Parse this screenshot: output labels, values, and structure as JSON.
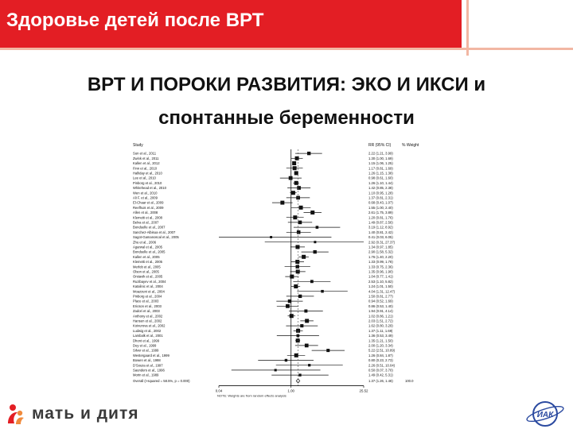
{
  "header": {
    "title": "Здоровье детей после ВРТ",
    "color": "#e31e24"
  },
  "slide": {
    "title_line1": "ВРТ И ПОРОКИ РАЗВИТИЯ: ЭКО И ИКСИ  и",
    "title_line2": "спонтанные беременности"
  },
  "chart_data": {
    "type": "forest",
    "columns": [
      "Study",
      "RR (95% CI)",
      "% Weight"
    ],
    "x_scale": "log",
    "x_ticks": [
      "0.04",
      "1.00",
      "25.52"
    ],
    "studies": [
      {
        "label": "Sun et al., 2011",
        "rr": 2.22,
        "ci": [
          1.21,
          3.99
        ]
      },
      {
        "label": "Zwink et al., 2011",
        "rr": 1.3,
        "ci": [
          1.0,
          1.69
        ]
      },
      {
        "label": "Kallen et al., 2012",
        "rr": 1.15,
        "ci": [
          1.06,
          1.25
        ]
      },
      {
        "label": "Finn et al., 2010",
        "rr": 1.17,
        "ci": [
          0.81,
          1.69
        ]
      },
      {
        "label": "Halliday et al., 2010",
        "rr": 1.26,
        "ci": [
          1.15,
          1.38
        ]
      },
      {
        "label": "Lee et al., 2010",
        "rr": 0.98,
        "ci": [
          0.61,
          1.6
        ]
      },
      {
        "label": "Pinborg et al., 2010",
        "rr": 1.26,
        "ci": [
          1.1,
          1.44
        ]
      },
      {
        "label": "Whitehead et al., 2010",
        "rr": 1.42,
        "ci": [
          0.85,
          2.38
        ]
      },
      {
        "label": "Wen et al., 2010",
        "rr": 1.1,
        "ci": [
          0.95,
          1.28
        ]
      },
      {
        "label": "Ali F. et al., 2009",
        "rr": 1.37,
        "ci": [
          0.81,
          2.31
        ]
      },
      {
        "label": "El-Chaar et al., 2009",
        "rr": 0.68,
        "ci": [
          0.43,
          1.07
        ]
      },
      {
        "label": "Reefhuis et al., 2009",
        "rr": 1.55,
        "ci": [
          1.0,
          2.4
        ]
      },
      {
        "label": "Allen et al., 2008",
        "rr": 2.61,
        "ci": [
          1.75,
          3.89
        ]
      },
      {
        "label": "Klemetti et al., 2008",
        "rr": 1.2,
        "ci": [
          0.81,
          1.76
        ]
      },
      {
        "label": "Belva et al., 2007",
        "rr": 1.49,
        "ci": [
          0.87,
          2.56
        ]
      },
      {
        "label": "Bonduelle et al., 2007",
        "rr": 3.19,
        "ci": [
          1.12,
          8.92
        ]
      },
      {
        "label": "Sanchez-Albisua et al., 2007",
        "rr": 1.4,
        "ci": [
          0.81,
          2.42
        ]
      },
      {
        "label": "Sagot-Gamanoscal et al., 2005",
        "rr": 0.41,
        "ci": [
          0.03,
          6.05
        ]
      },
      {
        "label": "Zhu et al., 2006",
        "rr": 2.92,
        "ci": [
          0.31,
          27.37
        ]
      },
      {
        "label": "Agarwal et al., 2005",
        "rr": 1.34,
        "ci": [
          0.97,
          1.85
        ]
      },
      {
        "label": "Bonduelle et al., 2005",
        "rr": 2.9,
        "ci": [
          1.58,
          5.32
        ]
      },
      {
        "label": "Kallen et al., 2005",
        "rr": 1.76,
        "ci": [
          1.4,
          2.2
        ]
      },
      {
        "label": "Klemetti et al., 2005",
        "rr": 1.33,
        "ci": [
          0.99,
          1.78
        ]
      },
      {
        "label": "Merlob et al., 2005",
        "rr": 1.33,
        "ci": [
          0.75,
          2.36
        ]
      },
      {
        "label": "Olson et al., 2005",
        "rr": 1.35,
        "ci": [
          0.96,
          1.9
        ]
      },
      {
        "label": "Orstavik et al., 2005",
        "rr": 1.04,
        "ci": [
          0.77,
          1.41
        ]
      },
      {
        "label": "Ruzibayev et al., 2004",
        "rr": 2.53,
        "ci": [
          1.1,
          5.82
        ]
      },
      {
        "label": "Katalinic et al., 2004",
        "rr": 1.24,
        "ci": [
          1.01,
          1.5
        ]
      },
      {
        "label": "Moazzeni et al., 2004",
        "rr": 4.04,
        "ci": [
          1.31,
          12.47
        ]
      },
      {
        "label": "Pinborg et al., 2004",
        "rr": 1.5,
        "ci": [
          0.81,
          2.77
        ]
      },
      {
        "label": "Place et al., 2003",
        "rr": 0.94,
        "ci": [
          0.52,
          1.69
        ]
      },
      {
        "label": "Ericson et al., 2003",
        "rr": 0.86,
        "ci": [
          0.53,
          1.4
        ]
      },
      {
        "label": "Zadori et al., 2003",
        "rr": 1.94,
        "ci": [
          0.91,
          4.14
        ]
      },
      {
        "label": "Anthony et al., 2002",
        "rr": 1.02,
        "ci": [
          0.86,
          1.21
        ]
      },
      {
        "label": "Hansen et al., 2002",
        "rr": 2.03,
        "ci": [
          1.51,
          2.72
        ]
      },
      {
        "label": "Koivurova et al., 2002",
        "rr": 1.62,
        "ci": [
          0.8,
          3.29
        ]
      },
      {
        "label": "Ludwig et al., 2002",
        "rr": 1.37,
        "ci": [
          1.11,
          1.69
        ]
      },
      {
        "label": "Lambalk et al., 2001",
        "rr": 1.36,
        "ci": [
          0.53,
          3.49
        ]
      },
      {
        "label": "Dhont et al., 1999",
        "rr": 1.35,
        "ci": [
          1.21,
          1.5
        ]
      },
      {
        "label": "Duy et al., 1999",
        "rr": 2.0,
        "ci": [
          1.2,
          3.34
        ]
      },
      {
        "label": "Silver et al., 1999",
        "rr": 5.22,
        "ci": [
          2.51,
          10.89
        ]
      },
      {
        "label": "Westergaard et al., 1999",
        "rr": 1.26,
        "ci": [
          0.84,
          1.87
        ]
      },
      {
        "label": "Bowen et al., 1998",
        "rr": 0.8,
        "ci": [
          0.23,
          2.73
        ]
      },
      {
        "label": "D'Souza et al., 1997",
        "rr": 2.26,
        "ci": [
          0.51,
          10.04
        ]
      },
      {
        "label": "Saunders et al., 1996",
        "rr": 0.5,
        "ci": [
          0.07,
          3.7
        ]
      },
      {
        "label": "Morin et al., 1989",
        "rr": 1.49,
        "ci": [
          0.42,
          5.31
        ]
      }
    ],
    "overall": {
      "label": "Overall (I-squared = 58.5%, p = 0.000)",
      "rr": 1.37,
      "ci": [
        1.26,
        1.48
      ],
      "weight": "100.0"
    },
    "footnote": "NOTE: Weights are from random effects analysis"
  },
  "footer": {
    "logo_text": "мать и дитя",
    "right_logo_text": "ИАК"
  }
}
